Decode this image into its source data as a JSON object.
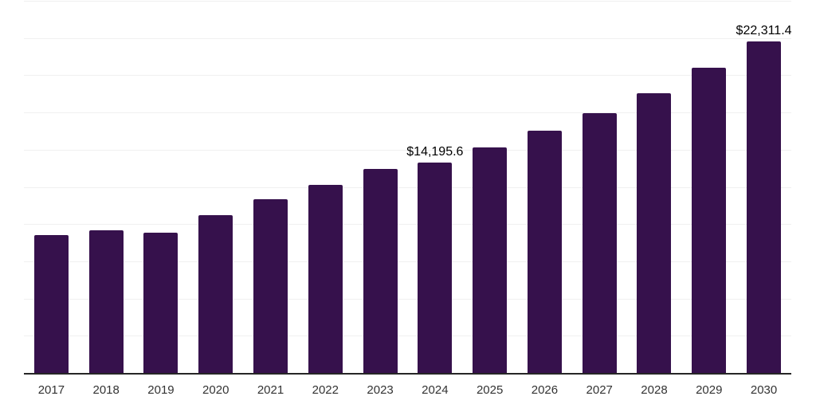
{
  "colors": {
    "background": "#FFFFFF",
    "bar": "#36114C",
    "gridline": "#F0F0F0",
    "axis_line": "#262626",
    "tick_label": "#333333",
    "data_label": "#000000"
  },
  "chart_data": {
    "type": "bar",
    "title": "",
    "xlabel": "",
    "ylabel": "",
    "categories": [
      "2017",
      "2018",
      "2019",
      "2020",
      "2021",
      "2022",
      "2023",
      "2024",
      "2025",
      "2026",
      "2027",
      "2028",
      "2029",
      "2030"
    ],
    "values": [
      9290,
      9650,
      9490,
      10630,
      11750,
      12700,
      13770,
      14195.6,
      15190,
      16320,
      17515,
      18855,
      20545,
      22311.4
    ],
    "labeled_points": [
      {
        "category": "2024",
        "label": "$14,195.6"
      },
      {
        "category": "2030",
        "label": "$22,311.4"
      }
    ],
    "ylim": [
      0,
      25000
    ],
    "gridline_step": 2500,
    "grid": "horizontal",
    "y_axis_tick_labels_visible": false,
    "legend_position": "none"
  }
}
